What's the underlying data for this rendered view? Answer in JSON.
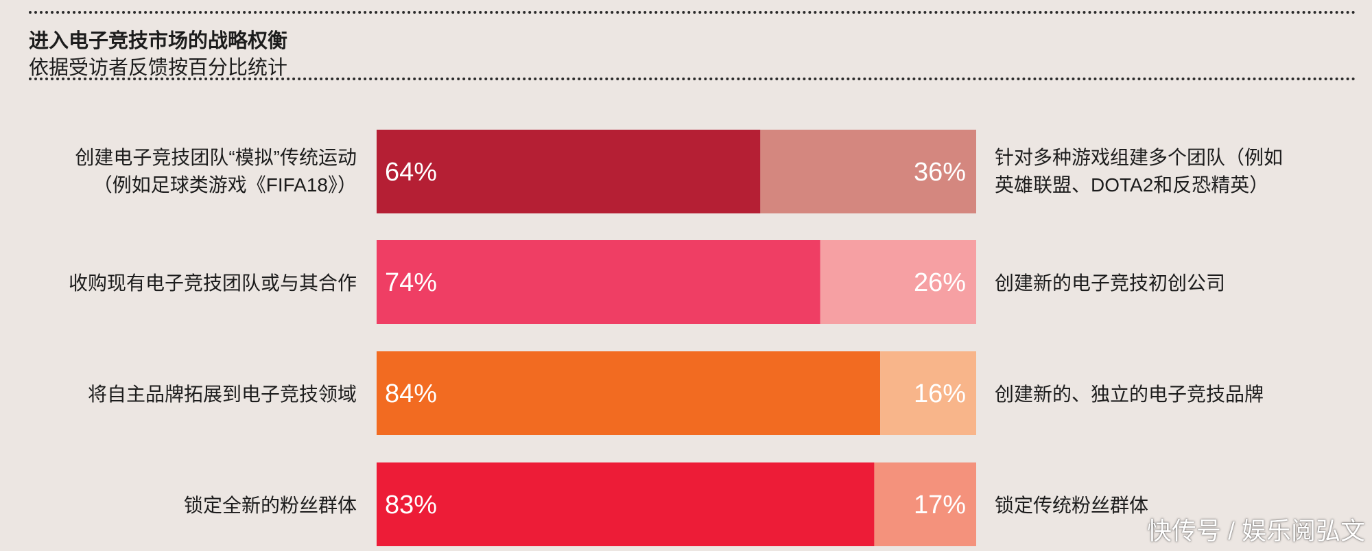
{
  "chart_data": {
    "type": "bar",
    "orientation": "horizontal",
    "stacked": true,
    "title": "进入电子竞技市场的战略权衡",
    "subtitle": "依据受访者反馈按百分比统计",
    "xlim": [
      0,
      100
    ],
    "rows": [
      {
        "left_label": [
          "创建电子竞技团队“模拟”传统运动",
          "（例如足球类游戏《FIFA18》）"
        ],
        "left_value": 64,
        "left_text": "64%",
        "right_label": [
          "针对多种游戏组建多个团队（例如",
          "英雄联盟、DOTA2和反恐精英）"
        ],
        "right_value": 36,
        "right_text": "36%",
        "left_color": "#b51f34",
        "right_color": "#d4877f"
      },
      {
        "left_label": [
          "收购现有电子竞技团队或与其合作"
        ],
        "left_value": 74,
        "left_text": "74%",
        "right_label": [
          "创建新的电子竞技初创公司"
        ],
        "right_value": 26,
        "right_text": "26%",
        "left_color": "#ef3e64",
        "right_color": "#f6a0a3"
      },
      {
        "left_label": [
          "将自主品牌拓展到电子竞技领域"
        ],
        "left_value": 84,
        "left_text": "84%",
        "right_label": [
          "创建新的、独立的电子竞技品牌"
        ],
        "right_value": 16,
        "right_text": "16%",
        "left_color": "#f26b21",
        "right_color": "#f8b58a"
      },
      {
        "left_label": [
          "锁定全新的粉丝群体"
        ],
        "left_value": 83,
        "left_text": "83%",
        "right_label": [
          "锁定传统粉丝群体"
        ],
        "right_value": 17,
        "right_text": "17%",
        "left_color": "#ed1c37",
        "right_color": "#f4927c"
      }
    ]
  },
  "watermark": "快传号 / 娱乐阅弘文"
}
